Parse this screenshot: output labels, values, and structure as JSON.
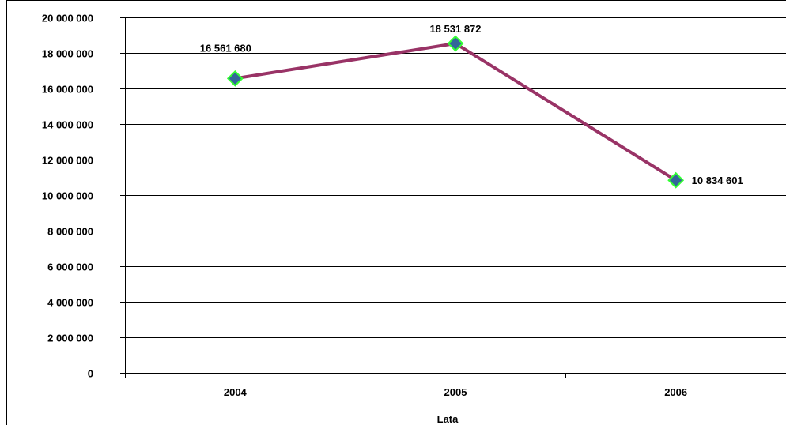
{
  "chart_data": {
    "type": "line",
    "title": "",
    "xlabel": "Lata",
    "ylabel": "",
    "categories": [
      "2004",
      "2005",
      "2006"
    ],
    "series": [
      {
        "values": [
          16561680,
          18531872,
          10834601
        ],
        "data_labels": [
          "16 561 680",
          "18 531 872",
          "10 834 601"
        ],
        "line_color": "#993366",
        "marker_fill": "#336699",
        "marker_edge": "#33ff33"
      }
    ],
    "ylim": [
      0,
      20000000
    ],
    "yticks": [
      0,
      2000000,
      4000000,
      6000000,
      8000000,
      10000000,
      12000000,
      14000000,
      16000000,
      18000000,
      20000000
    ],
    "ytick_labels": [
      "0",
      "2 000 000",
      "4 000 000",
      "6 000 000",
      "8 000 000",
      "10 000 000",
      "12 000 000",
      "14 000 000",
      "16 000 000",
      "18 000 000",
      "20 000 000"
    ],
    "grid": true,
    "legend": "none",
    "gridline_color": "#000000",
    "background": "#ffffff"
  }
}
